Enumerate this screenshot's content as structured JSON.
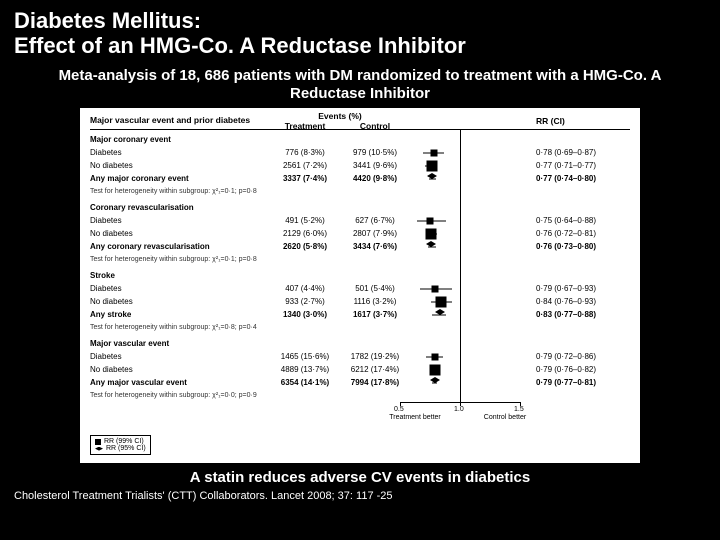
{
  "title_line1": "Diabetes Mellitus:",
  "title_line2": "Effect of an HMG-Co. A Reductase Inhibitor",
  "subtitle": "Meta-analysis of 18, 686 patients with DM randomized to treatment with a HMG-Co. A Reductase Inhibitor",
  "conclusion": "A statin reduces adverse CV events in diabetics",
  "citation": "Cholesterol Treatment Trialists' (CTT) Collaborators. Lancet 2008; 37: 117 -25",
  "colors": {
    "page_bg": "#000000",
    "text": "#ffffff",
    "figure_bg": "#ffffff",
    "figure_text": "#000000",
    "axis": "#000000"
  },
  "figure": {
    "header": {
      "left": "Major vascular event and prior diabetes",
      "events": "Events (%)",
      "tx": "Treatment",
      "ctrl": "Control",
      "rr": "RR (CI)"
    },
    "axis": {
      "ticks": [
        "0.5",
        "1.0",
        "1.5"
      ],
      "left_label": "Treatment better",
      "right_label": "Control better",
      "scale_min": 0.5,
      "scale_max": 1.5,
      "unity": 1.0
    },
    "legend": {
      "l1": "RR (99% CI)",
      "l2": "RR (95% CI)"
    },
    "groups": [
      {
        "title": "Major coronary event",
        "rows": [
          {
            "label": "Diabetes",
            "tx": "776 (8·3%)",
            "ctrl": "979 (10·5%)",
            "rr": "0·78 (0·69–0·87)",
            "pt": 0.78,
            "lo": 0.69,
            "hi": 0.87,
            "style": "sq"
          },
          {
            "label": "No diabetes",
            "tx": "2561 (7·2%)",
            "ctrl": "3441 (9·6%)",
            "rr": "0·77 (0·71–0·77)",
            "pt": 0.77,
            "lo": 0.71,
            "hi": 0.77,
            "style": "sq-big"
          },
          {
            "label": "Any major coronary event",
            "tx": "3337 (7·4%)",
            "ctrl": "4420 (9·8%)",
            "rr": "0·77 (0·74–0·80)",
            "pt": 0.77,
            "lo": 0.74,
            "hi": 0.8,
            "style": "dia",
            "bold": true
          },
          {
            "label": "Test for heterogeneity within subgroup: χ²₁=0·1; p=0·8",
            "test": true
          }
        ]
      },
      {
        "title": "Coronary revascularisation",
        "rows": [
          {
            "label": "Diabetes",
            "tx": "491 (5·2%)",
            "ctrl": "627 (6·7%)",
            "rr": "0·75 (0·64–0·88)",
            "pt": 0.75,
            "lo": 0.64,
            "hi": 0.88,
            "style": "sq"
          },
          {
            "label": "No diabetes",
            "tx": "2129 (6·0%)",
            "ctrl": "2807 (7·9%)",
            "rr": "0·76 (0·72–0·81)",
            "pt": 0.76,
            "lo": 0.72,
            "hi": 0.81,
            "style": "sq-big"
          },
          {
            "label": "Any coronary revascularisation",
            "tx": "2620 (5·8%)",
            "ctrl": "3434 (7·6%)",
            "rr": "0·76 (0·73–0·80)",
            "pt": 0.76,
            "lo": 0.73,
            "hi": 0.8,
            "style": "dia",
            "bold": true
          },
          {
            "label": "Test for heterogeneity within subgroup: χ²₁=0·1; p=0·8",
            "test": true
          }
        ]
      },
      {
        "title": "Stroke",
        "rows": [
          {
            "label": "Diabetes",
            "tx": "407 (4·4%)",
            "ctrl": "501 (5·4%)",
            "rr": "0·79 (0·67–0·93)",
            "pt": 0.79,
            "lo": 0.67,
            "hi": 0.93,
            "style": "sq"
          },
          {
            "label": "No diabetes",
            "tx": "933 (2·7%)",
            "ctrl": "1116 (3·2%)",
            "rr": "0·84 (0·76–0·93)",
            "pt": 0.84,
            "lo": 0.76,
            "hi": 0.93,
            "style": "sq-big"
          },
          {
            "label": "Any stroke",
            "tx": "1340 (3·0%)",
            "ctrl": "1617 (3·7%)",
            "rr": "0·83 (0·77–0·88)",
            "pt": 0.83,
            "lo": 0.77,
            "hi": 0.88,
            "style": "dia",
            "bold": true
          },
          {
            "label": "Test for heterogeneity within subgroup: χ²₁=0·8; p=0·4",
            "test": true
          }
        ]
      },
      {
        "title": "Major vascular event",
        "rows": [
          {
            "label": "Diabetes",
            "tx": "1465 (15·6%)",
            "ctrl": "1782 (19·2%)",
            "rr": "0·79 (0·72–0·86)",
            "pt": 0.79,
            "lo": 0.72,
            "hi": 0.86,
            "style": "sq"
          },
          {
            "label": "No diabetes",
            "tx": "4889 (13·7%)",
            "ctrl": "6212 (17·4%)",
            "rr": "0·79 (0·76–0·82)",
            "pt": 0.79,
            "lo": 0.76,
            "hi": 0.82,
            "style": "sq-big"
          },
          {
            "label": "Any major vascular event",
            "tx": "6354 (14·1%)",
            "ctrl": "7994 (17·8%)",
            "rr": "0·79 (0·77–0·81)",
            "pt": 0.79,
            "lo": 0.77,
            "hi": 0.81,
            "style": "dia",
            "bold": true
          },
          {
            "label": "Test for heterogeneity within subgroup: χ²₁=0·0; p=0·9",
            "test": true
          }
        ]
      }
    ]
  }
}
